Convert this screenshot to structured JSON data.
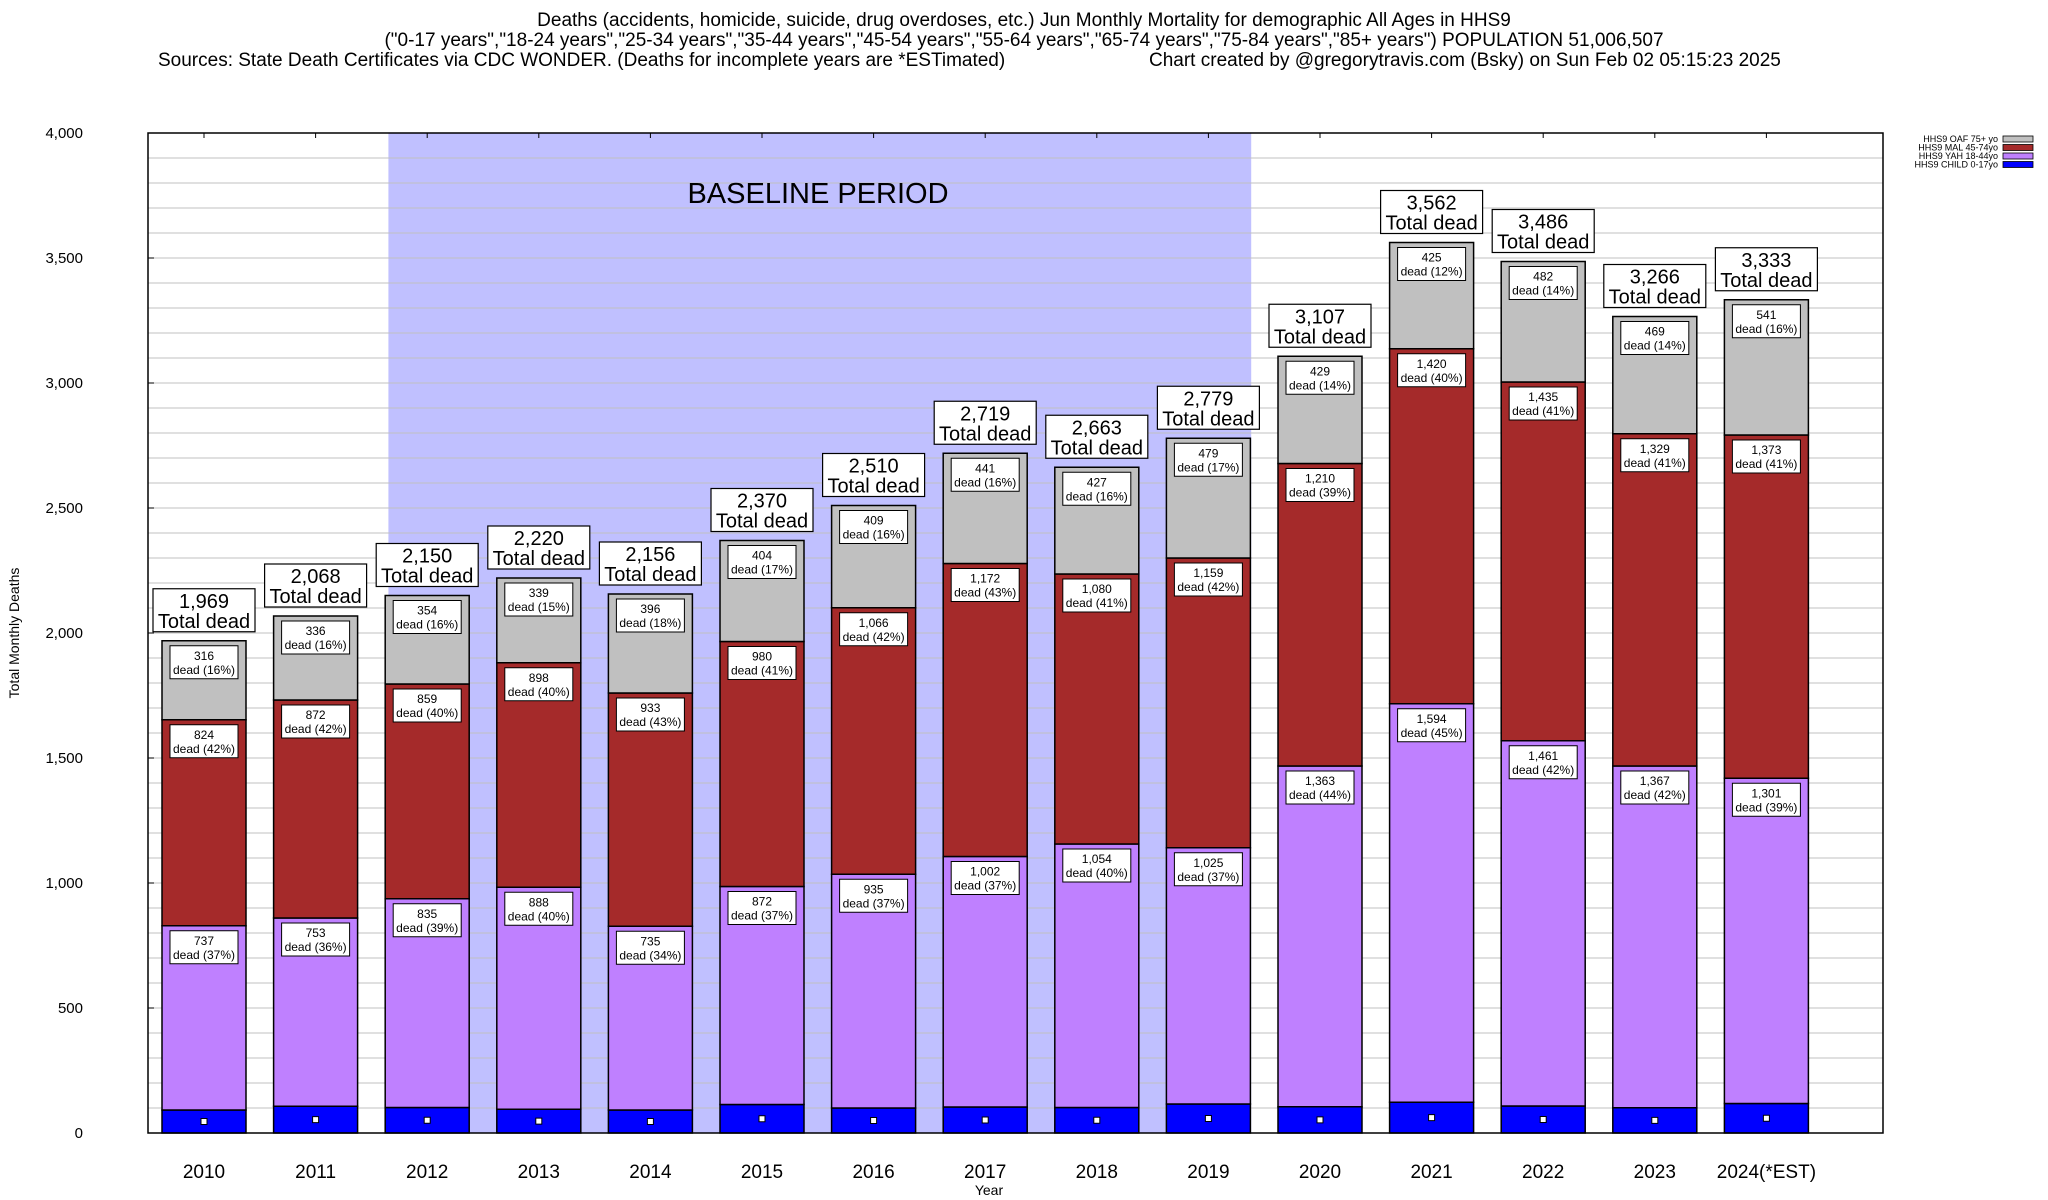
{
  "chart_data": {
    "type": "bar",
    "stacked": true,
    "title_lines": [
      "Deaths (accidents, homicide, suicide, drug overdoses, etc.) Jun Monthly Mortality for demographic All Ages in HHS9",
      "(\"0-17 years\",\"18-24 years\",\"25-34 years\",\"35-44 years\",\"45-54 years\",\"55-64 years\",\"65-74 years\",\"75-84 years\",\"85+ years\") POPULATION 51,006,507"
    ],
    "sources": "Sources: State Death Certificates via CDC WONDER. (Deaths for incomplete years are *ESTimated)",
    "credit": "Chart created by @gregorytravis.com (Bsky) on Sun Feb 02 05:15:23 2025",
    "xlabel": "Year",
    "ylabel": "Total Monthly Deaths",
    "ylim": [
      0,
      4000
    ],
    "yticks": [
      0,
      500,
      1000,
      1500,
      2000,
      2500,
      3000,
      3500,
      4000
    ],
    "ytick_labels": [
      "0",
      "500",
      "1,000",
      "1,500",
      "2,000",
      "2,500",
      "3,000",
      "3,500",
      "4,000"
    ],
    "minor_grid_step": 100,
    "grid": true,
    "categories": [
      "2010",
      "2011",
      "2012",
      "2013",
      "2014",
      "2015",
      "2016",
      "2017",
      "2018",
      "2019",
      "2020",
      "2021",
      "2022",
      "2023",
      "2024(*EST)"
    ],
    "annotation": {
      "text": "BASELINE PERIOD",
      "from": "2012",
      "to": "2019",
      "color": "#c0c0ff"
    },
    "legend_position": "top-right",
    "total_label_suffix": "Total dead",
    "segment_label_word": "dead",
    "series": [
      {
        "name": "HHS9 CHILD 0-17yo",
        "color": "#0000ff",
        "values": [
          92,
          107,
          102,
          95,
          92,
          114,
          100,
          104,
          102,
          116,
          105,
          123,
          108,
          101,
          118
        ],
        "labels": []
      },
      {
        "name": "HHS9 YAH 18-44yo",
        "color": "#bf80ff",
        "values": [
          737,
          753,
          835,
          888,
          735,
          872,
          935,
          1002,
          1054,
          1025,
          1363,
          1594,
          1461,
          1367,
          1301
        ],
        "labels": [
          "737",
          "753",
          "835",
          "888",
          "735",
          "872",
          "935",
          "1,002",
          "1,054",
          "1,025",
          "1,363",
          "1,594",
          "1,461",
          "1,367",
          "1,301"
        ],
        "pct": [
          "37%",
          "36%",
          "39%",
          "40%",
          "34%",
          "37%",
          "37%",
          "37%",
          "40%",
          "37%",
          "44%",
          "45%",
          "42%",
          "42%",
          "39%"
        ]
      },
      {
        "name": "HHS9 MAL 45-74yo",
        "color": "#a52a2a",
        "values": [
          824,
          872,
          859,
          898,
          933,
          980,
          1066,
          1172,
          1080,
          1159,
          1210,
          1420,
          1435,
          1329,
          1373
        ],
        "labels": [
          "824",
          "872",
          "859",
          "898",
          "933",
          "980",
          "1,066",
          "1,172",
          "1,080",
          "1,159",
          "1,210",
          "1,420",
          "1,435",
          "1,329",
          "1,373"
        ],
        "pct": [
          "42%",
          "42%",
          "40%",
          "40%",
          "43%",
          "41%",
          "42%",
          "43%",
          "41%",
          "42%",
          "39%",
          "40%",
          "41%",
          "41%",
          "41%"
        ]
      },
      {
        "name": "HHS9 OAF 75+ yo",
        "color": "#c0c0c0",
        "values": [
          316,
          336,
          354,
          339,
          396,
          404,
          409,
          441,
          427,
          479,
          429,
          425,
          482,
          469,
          541
        ],
        "labels": [
          "316",
          "336",
          "354",
          "339",
          "396",
          "404",
          "409",
          "441",
          "427",
          "479",
          "429",
          "425",
          "482",
          "469",
          "541"
        ],
        "pct": [
          "16%",
          "16%",
          "16%",
          "15%",
          "18%",
          "17%",
          "16%",
          "16%",
          "16%",
          "17%",
          "14%",
          "12%",
          "14%",
          "14%",
          "16%"
        ]
      }
    ],
    "totals": [
      1969,
      2068,
      2150,
      2220,
      2156,
      2370,
      2510,
      2719,
      2663,
      2779,
      3107,
      3562,
      3486,
      3266,
      3333
    ],
    "total_labels": [
      "1,969",
      "2,068",
      "2,150",
      "2,220",
      "2,156",
      "2,370",
      "2,510",
      "2,719",
      "2,663",
      "2,779",
      "3,107",
      "3,562",
      "3,486",
      "3,266",
      "3,333"
    ]
  }
}
